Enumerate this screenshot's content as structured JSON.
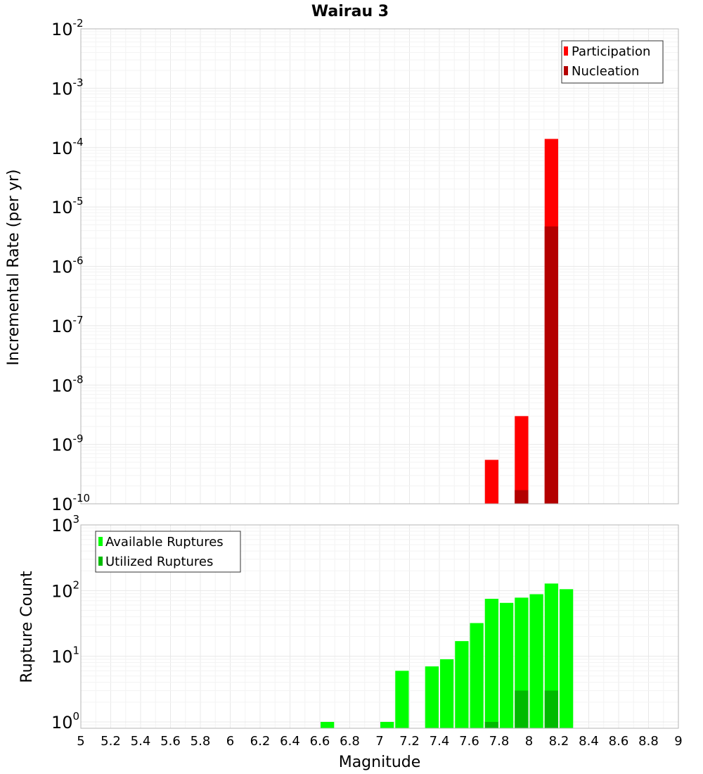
{
  "chart_data": [
    {
      "type": "bar",
      "title": "Wairau 3",
      "xlabel": "",
      "ylabel": "Incremental Rate (per yr)",
      "xlim": [
        5,
        9
      ],
      "ylim": [
        1e-10,
        0.01
      ],
      "y_scale": "log",
      "grid": true,
      "legend_position": "top-right",
      "y_tick_exponents": [
        "-10",
        "-9",
        "-8",
        "-7",
        "-6",
        "-5",
        "-4",
        "-3",
        "-2"
      ],
      "series": [
        {
          "name": "Participation",
          "color": "#ff0000",
          "x": [
            7.75,
            7.95,
            8.15
          ],
          "values": [
            5.5e-10,
            3e-09,
            0.00014
          ]
        },
        {
          "name": "Nucleation",
          "color": "#b30000",
          "x": [
            7.95,
            8.15
          ],
          "values": [
            1.7e-10,
            4.7e-06
          ]
        }
      ]
    },
    {
      "type": "bar",
      "title": "",
      "xlabel": "Magnitude",
      "ylabel": "Rupture Count",
      "xlim": [
        5,
        9
      ],
      "ylim": [
        0.8,
        1000
      ],
      "y_scale": "log",
      "grid": true,
      "legend_position": "top-left",
      "y_tick_exponents": [
        "0",
        "1",
        "2",
        "3"
      ],
      "x_ticks": [
        "5",
        "5.2",
        "5.4",
        "5.6",
        "5.8",
        "6",
        "6.2",
        "6.4",
        "6.6",
        "6.8",
        "7",
        "7.2",
        "7.4",
        "7.6",
        "7.8",
        "8",
        "8.2",
        "8.4",
        "8.6",
        "8.8",
        "9"
      ],
      "series": [
        {
          "name": "Available Ruptures",
          "color": "#00ff00",
          "x": [
            6.65,
            7.05,
            7.15,
            7.35,
            7.45,
            7.55,
            7.65,
            7.75,
            7.85,
            7.95,
            8.05,
            8.15,
            8.25
          ],
          "values": [
            1,
            1,
            6,
            7,
            9,
            17,
            32,
            75,
            65,
            78,
            88,
            128,
            105
          ]
        },
        {
          "name": "Utilized Ruptures",
          "color": "#00bb00",
          "x": [
            7.75,
            7.95,
            8.15
          ],
          "values": [
            1,
            3,
            3
          ]
        }
      ]
    }
  ]
}
